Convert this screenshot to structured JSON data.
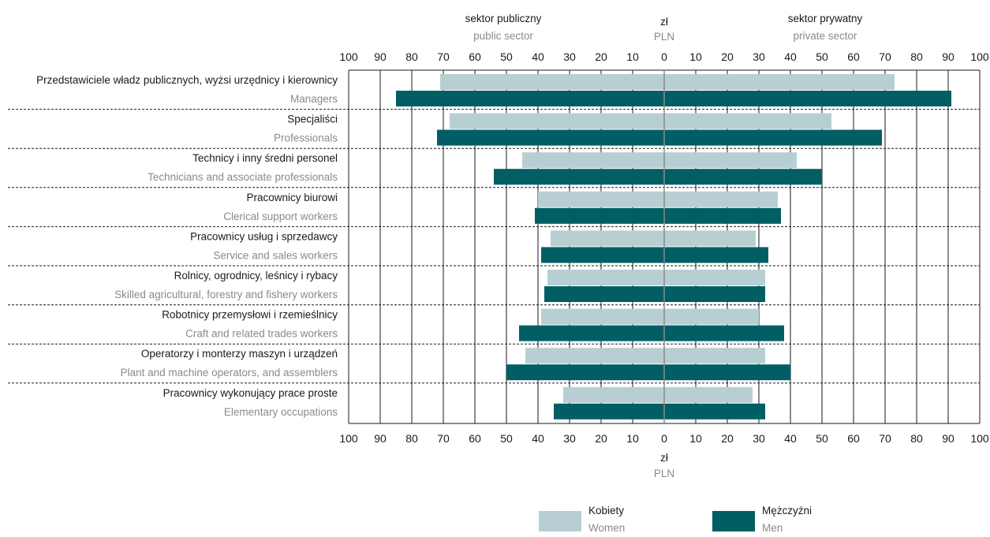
{
  "colors": {
    "women": "#b7cfd2",
    "men": "#005e64",
    "grid": "#1a1a1a",
    "axis": "#8a8a8a"
  },
  "chart_data": {
    "type": "bar",
    "orientation": "horizontal-diverging",
    "header": {
      "left": {
        "pl": "sektor publiczny",
        "en": "public sector"
      },
      "center": {
        "pl": "zł",
        "en": "PLN"
      },
      "right": {
        "pl": "sektor prywatny",
        "en": "private sector"
      }
    },
    "bottom_label": {
      "pl": "zł",
      "en": "PLN"
    },
    "ticks_left": [
      "100",
      "90",
      "80",
      "70",
      "60",
      "50",
      "40",
      "30",
      "20",
      "10",
      "0"
    ],
    "ticks_right": [
      "10",
      "20",
      "30",
      "40",
      "50",
      "60",
      "70",
      "80",
      "90",
      "100"
    ],
    "xlim": [
      0,
      100
    ],
    "grid": true,
    "legend_position": "bottom",
    "categories": [
      {
        "pl": "Przedstawiciele władz publicznych, wyżsi urzędnicy i kierownicy",
        "en": "Managers"
      },
      {
        "pl": "Specjaliści",
        "en": "Professionals"
      },
      {
        "pl": "Technicy i inny średni personel",
        "en": "Technicians and associate professionals"
      },
      {
        "pl": "Pracownicy biurowi",
        "en": "Clerical support workers"
      },
      {
        "pl": "Pracownicy usług i sprzedawcy",
        "en": "Service and sales workers"
      },
      {
        "pl": "Rolnicy, ogrodnicy, leśnicy i rybacy",
        "en": "Skilled agricultural, forestry and fishery workers"
      },
      {
        "pl": "Robotnicy przemysłowi i rzemieślnicy",
        "en": "Craft and related trades workers"
      },
      {
        "pl": "Operatorzy i monterzy maszyn i urządzeń",
        "en": "Plant and machine operators, and assemblers"
      },
      {
        "pl": "Pracownicy wykonujący prace proste",
        "en": "Elementary occupations"
      }
    ],
    "series": [
      {
        "key": "women",
        "name": {
          "pl": "Kobiety",
          "en": "Women"
        },
        "public": [
          71,
          68,
          45,
          40,
          36,
          37,
          39,
          44,
          32
        ],
        "private": [
          73,
          53,
          42,
          36,
          29,
          32,
          30,
          32,
          28
        ]
      },
      {
        "key": "men",
        "name": {
          "pl": "Mężczyźni",
          "en": "Men"
        },
        "public": [
          85,
          72,
          54,
          41,
          39,
          38,
          46,
          50,
          35
        ],
        "private": [
          91,
          69,
          50,
          37,
          33,
          32,
          38,
          40,
          32
        ]
      }
    ]
  }
}
